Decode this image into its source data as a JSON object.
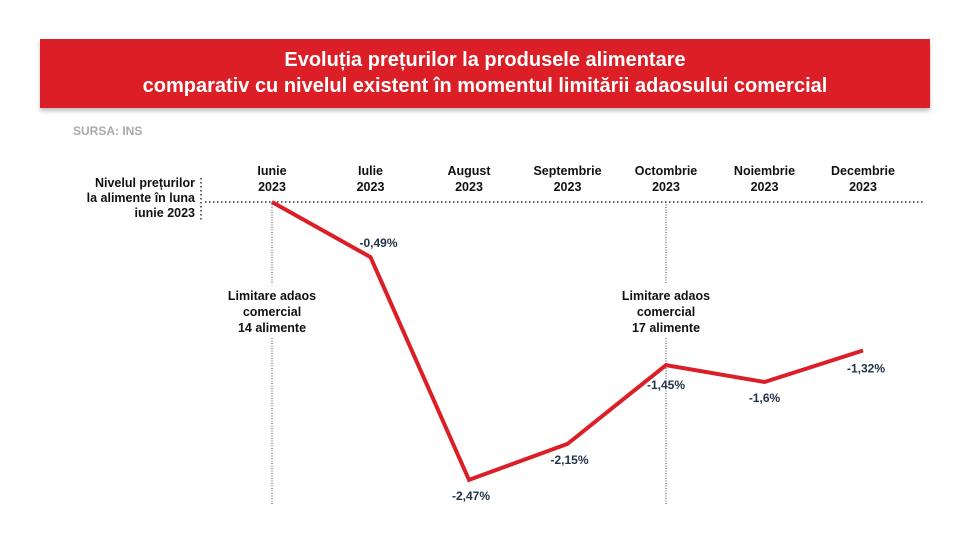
{
  "chart_data": {
    "type": "line",
    "title": [
      "Evoluția prețurilor la produsele alimentare",
      "comparativ cu nivelul existent în momentul limitării adaosului comercial"
    ],
    "source": "SURSA: INS",
    "categories": [
      [
        "Iunie",
        "2023"
      ],
      [
        "Iulie",
        "2023"
      ],
      [
        "August",
        "2023"
      ],
      [
        "Septembrie",
        "2023"
      ],
      [
        "Octombrie",
        "2023"
      ],
      [
        "Noiembrie",
        "2023"
      ],
      [
        "Decembrie",
        "2023"
      ]
    ],
    "values": [
      0,
      -0.49,
      -2.47,
      -2.15,
      -1.45,
      -1.6,
      -1.32
    ],
    "value_labels": [
      "",
      "-0,49%",
      "-2,47%",
      "-2,15%",
      "-1,45%",
      "-1,6%",
      "-1,32%"
    ],
    "ylim": [
      -2.7,
      0.2
    ],
    "baseline_label": [
      "Nivelul prețurilor",
      "la alimente în luna",
      "iunie 2023"
    ],
    "annotations": [
      {
        "category_index": 0,
        "text": [
          "Limitare adaos",
          "comercial",
          "14 alimente"
        ]
      },
      {
        "category_index": 4,
        "text": [
          "Limitare adaos",
          "comercial",
          "17 alimente"
        ]
      }
    ],
    "line_color": "#dc1f27",
    "grid": false
  }
}
